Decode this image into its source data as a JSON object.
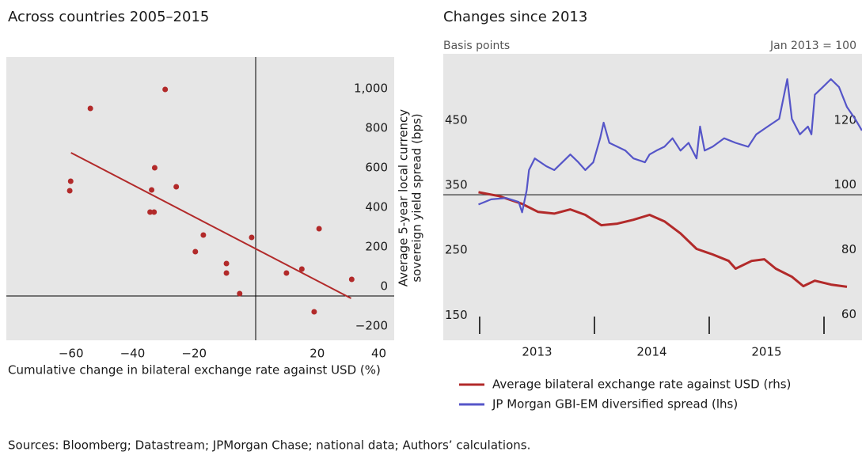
{
  "chart_data": [
    {
      "type": "scatter",
      "title": "Across countries 2005–2015",
      "x_label": "Cumulative change in bilateral exchange rate against USD (%)",
      "y_label": [
        "Average 5-year local currency",
        "sovereign yield spread (bps)"
      ],
      "points": {
        "color": "#b22a2a",
        "x": [
          -53.7,
          -29.4,
          -60.1,
          -60.4,
          -32.8,
          -33.8,
          -25.8,
          -34.3,
          -33,
          -17,
          -19.6,
          -1.3,
          -9.5,
          -9.5,
          -5.2,
          10,
          15,
          20.6,
          19,
          31.2
        ],
        "y": [
          948,
          1044,
          580,
          532,
          648,
          536,
          552,
          424,
          424,
          308,
          224,
          296,
          164,
          116,
          12,
          116,
          136,
          340,
          -80,
          84
        ]
      },
      "trend_line": {
        "color": "#b22a2a",
        "x": [
          -60,
          31
        ],
        "y": [
          724,
          -12
        ]
      },
      "xlim": [
        -81,
        45
      ],
      "ylim": [
        -224,
        1208
      ],
      "xticks": [
        {
          "value": -60,
          "label": "−60"
        },
        {
          "value": -40,
          "label": "−40"
        },
        {
          "value": -20,
          "label": "−20"
        },
        20,
        40
      ],
      "yticks": [
        {
          "value": -200,
          "label": "−200"
        },
        0,
        200,
        400,
        600,
        800,
        {
          "value": 1000,
          "label": "1,000"
        }
      ]
    },
    {
      "type": "line",
      "title": "Changes since 2013",
      "y_label": "Basis points",
      "y2_label": "Jan 2013 = 100",
      "xlim": [
        2012.683,
        2016.331
      ],
      "ylim": [
        126,
        567
      ],
      "y2lim": [
        55,
        143.4
      ],
      "xticks": [
        {
          "value": 2013,
          "label": "2013"
        },
        {
          "value": 2014,
          "label": "2014"
        },
        {
          "value": 2015,
          "label": "2015"
        },
        {
          "value": 2016,
          "label": null
        }
      ],
      "yticks": [
        150,
        250,
        350,
        450
      ],
      "y2ticks": [
        60,
        80,
        100,
        120
      ],
      "reference_line": 350,
      "series": [
        {
          "name": "Average bilateral exchange rate against USD (rhs)",
          "color": "#b22a2a",
          "axis": "y2",
          "x": [
            2012.99,
            2013.17,
            2013.37,
            2013.51,
            2013.65,
            2013.79,
            2013.92,
            2014.06,
            2014.2,
            2014.34,
            2014.48,
            2014.61,
            2014.75,
            2014.89,
            2015.03,
            2015.17,
            2015.23,
            2015.37,
            2015.48,
            2015.58,
            2015.72,
            2015.82,
            2015.92,
            2016.06,
            2016.2
          ],
          "values": [
            100.7,
            99.5,
            97.1,
            94.6,
            94.1,
            95.4,
            93.7,
            90.5,
            91,
            92.2,
            93.7,
            91.7,
            88,
            83.2,
            81.5,
            79.5,
            77.1,
            79.5,
            80,
            77.1,
            74.6,
            71.7,
            73.4,
            72.2,
            71.5
          ]
        },
        {
          "name": "JP Morgan GBI-EM diversified spread (lhs)",
          "color": "#5555c8",
          "axis": "y",
          "x": [
            2012.99,
            2013.1,
            2013.23,
            2013.34,
            2013.37,
            2013.41,
            2013.43,
            2013.48,
            2013.58,
            2013.65,
            2013.72,
            2013.79,
            2013.86,
            2013.92,
            2013.99,
            2014.05,
            2014.08,
            2014.13,
            2014.27,
            2014.34,
            2014.44,
            2014.48,
            2014.54,
            2014.61,
            2014.68,
            2014.75,
            2014.82,
            2014.89,
            2014.92,
            2014.96,
            2015.03,
            2015.13,
            2015.23,
            2015.34,
            2015.41,
            2015.51,
            2015.61,
            2015.68,
            2015.72,
            2015.79,
            2015.86,
            2015.89,
            2015.92,
            2015.99,
            2016.06,
            2016.13,
            2016.2,
            2016.27,
            2016.33
          ],
          "values": [
            335,
            343,
            345,
            339,
            323,
            357,
            388,
            406,
            394,
            388,
            400,
            412,
            400,
            388,
            400,
            437,
            461,
            430,
            418,
            406,
            400,
            412,
            418,
            424,
            437,
            418,
            430,
            406,
            455,
            418,
            424,
            437,
            430,
            424,
            443,
            455,
            467,
            528,
            467,
            443,
            455,
            443,
            504,
            516,
            528,
            516,
            485,
            467,
            449
          ]
        }
      ]
    }
  ],
  "sources": "Sources: Bloomberg; Datastream; JPMorgan Chase; national data; Authors’ calculations."
}
